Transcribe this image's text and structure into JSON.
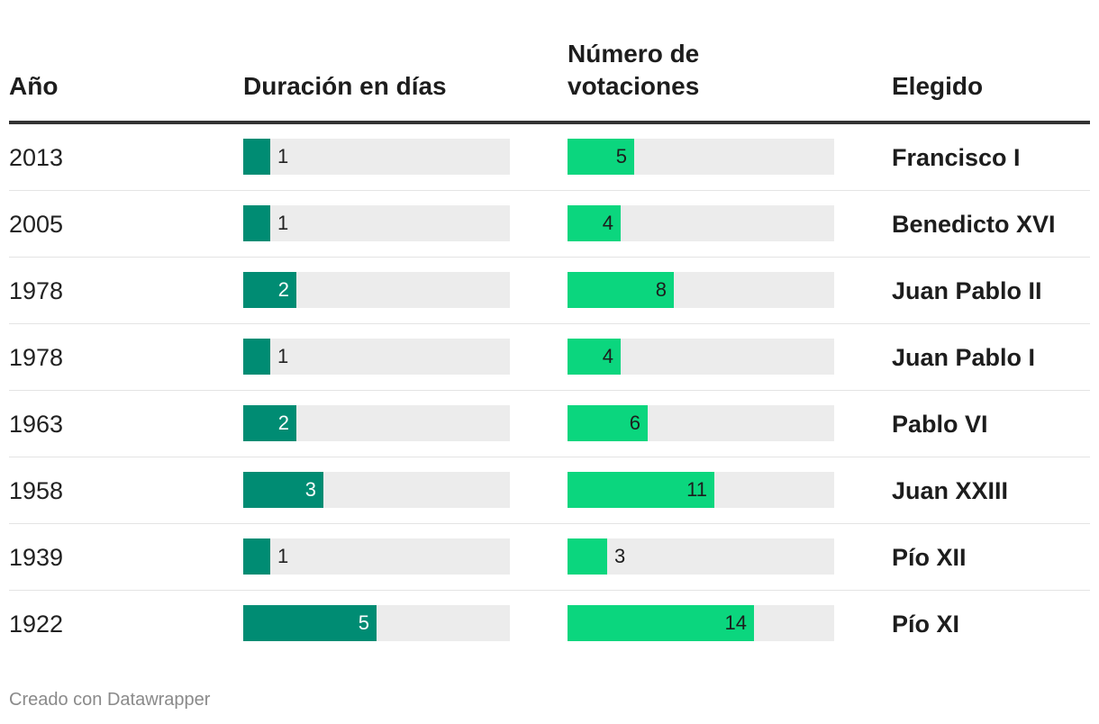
{
  "header": {
    "year": "Año",
    "duration": "Duración en días",
    "votes_line1": "Número de",
    "votes_line2": "votaciones",
    "elected": "Elegido"
  },
  "chart_data": {
    "type": "table",
    "columns": [
      "Año",
      "Duración en días",
      "Número de votaciones",
      "Elegido"
    ],
    "duration_max": 10,
    "votes_max": 20,
    "rows": [
      {
        "year": "2013",
        "duration": 1,
        "votes": 5,
        "elected": "Francisco I"
      },
      {
        "year": "2005",
        "duration": 1,
        "votes": 4,
        "elected": "Benedicto XVI"
      },
      {
        "year": "1978",
        "duration": 2,
        "votes": 8,
        "elected": "Juan Pablo II"
      },
      {
        "year": "1978",
        "duration": 1,
        "votes": 4,
        "elected": "Juan Pablo I"
      },
      {
        "year": "1963",
        "duration": 2,
        "votes": 6,
        "elected": "Pablo VI"
      },
      {
        "year": "1958",
        "duration": 3,
        "votes": 11,
        "elected": "Juan XXIII"
      },
      {
        "year": "1939",
        "duration": 1,
        "votes": 3,
        "elected": "Pío XII"
      },
      {
        "year": "1922",
        "duration": 5,
        "votes": 14,
        "elected": "Pío XI"
      }
    ]
  },
  "colors": {
    "duration_bar": "#008c73",
    "votes_bar": "#0bd67e",
    "track": "#ececec"
  },
  "footer": "Creado con Datawrapper"
}
